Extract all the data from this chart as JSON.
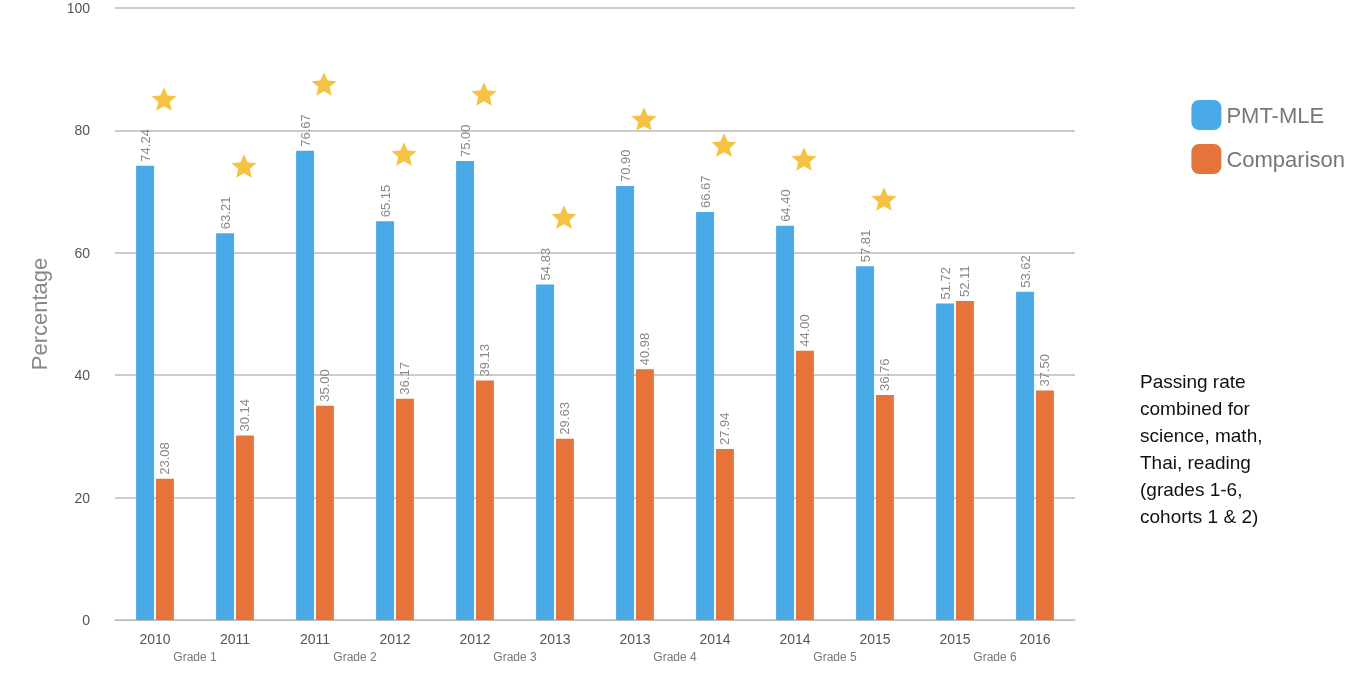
{
  "chart_data": {
    "type": "bar",
    "ylabel": "Percentage",
    "categories": [
      "2010",
      "2011",
      "2011",
      "2012",
      "2012",
      "2013",
      "2013",
      "2014",
      "2014",
      "2015",
      "2015",
      "2016"
    ],
    "series": [
      {
        "name": "PMT-MLE",
        "color": "#4aaae8",
        "values": [
          74.24,
          63.21,
          76.67,
          65.15,
          75.0,
          54.83,
          70.9,
          66.67,
          64.4,
          57.81,
          51.72,
          53.62
        ],
        "value_labels": [
          "74.24",
          "63.21",
          "76.67",
          "65.15",
          "75.00",
          "54.83",
          "70.90",
          "66.67",
          "64.40",
          "57.81",
          "51.72",
          "53.62"
        ]
      },
      {
        "name": "Comparison",
        "color": "#e5743a",
        "values": [
          23.08,
          30.14,
          35.0,
          36.17,
          39.13,
          29.63,
          40.98,
          27.94,
          44.0,
          36.76,
          52.11,
          37.5
        ],
        "value_labels": [
          "23.08",
          "30.14",
          "35.00",
          "36.17",
          "39.13",
          "29.63",
          "40.98",
          "27.94",
          "44.00",
          "36.76",
          "52.11",
          "37.50"
        ]
      }
    ],
    "ylim": [
      0,
      100
    ],
    "yticks": [
      0,
      20,
      40,
      60,
      80,
      100
    ],
    "grid": "y",
    "legend": "right",
    "annotations": [
      "Grade 1",
      "Grade 2",
      "Grade 3",
      "Grade 4",
      "Grade 5",
      "Grade 6",
      "Passing rate combined for science, math, Thai, reading (grades 1-6, cohorts 1 & 2)"
    ]
  }
}
